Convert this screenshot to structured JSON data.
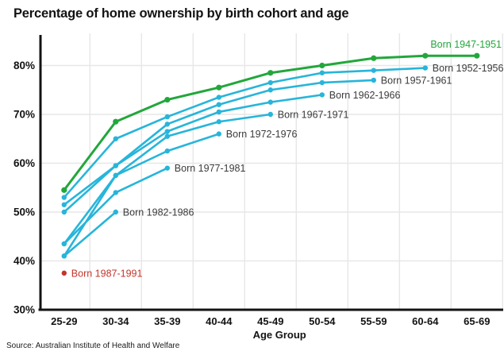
{
  "title": "Percentage of home ownership by birth cohort and age",
  "source": "Source: Australian Institute of Health and Welfare",
  "colors": {
    "green": "#22a73b",
    "cyan": "#27b5da",
    "red": "#c5342c",
    "label_gray": "#3b3b3b",
    "grid": "#e7e7e7",
    "axis": "#131313"
  },
  "chart_data": {
    "type": "line",
    "title": "Percentage of home ownership by birth cohort and age",
    "xlabel": "Age Group",
    "ylabel": "",
    "grid": true,
    "ylim": [
      30,
      86.5
    ],
    "legend_position": "end-of-line-labels",
    "x_categories": [
      "25-29",
      "30-34",
      "35-39",
      "40-44",
      "45-49",
      "50-54",
      "55-59",
      "60-64",
      "65-69"
    ],
    "y_ticks": [
      {
        "value": 80,
        "label": "80%"
      },
      {
        "value": 70,
        "label": "70%"
      },
      {
        "value": 60,
        "label": "60%"
      },
      {
        "value": 50,
        "label": "50%"
      },
      {
        "value": 40,
        "label": "40%"
      },
      {
        "value": 30,
        "label": "30%"
      }
    ],
    "series": [
      {
        "name": "Born 1947-1951",
        "color_key": "green",
        "label_color_key": "green",
        "label_pos": "above-end",
        "values": [
          54.5,
          68.5,
          73,
          75.5,
          78.5,
          80,
          81.5,
          82,
          82
        ]
      },
      {
        "name": "Born 1952-1956",
        "color_key": "cyan",
        "label_color_key": "label_gray",
        "label_pos": "right-of-end",
        "values": [
          53,
          65,
          69.5,
          73.5,
          76.5,
          78.5,
          79,
          79.5
        ]
      },
      {
        "name": "Born 1957-1961",
        "color_key": "cyan",
        "label_color_key": "label_gray",
        "label_pos": "right-of-end",
        "values": [
          51.5,
          59.5,
          68,
          72,
          75,
          76.5,
          77
        ]
      },
      {
        "name": "Born 1962-1966",
        "color_key": "cyan",
        "label_color_key": "label_gray",
        "label_pos": "right-of-end",
        "values": [
          50,
          59.5,
          66.5,
          70.5,
          72.5,
          74
        ]
      },
      {
        "name": "Born 1967-1971",
        "color_key": "cyan",
        "label_color_key": "label_gray",
        "label_pos": "right-of-end",
        "values": [
          43.5,
          57.5,
          65.5,
          68.5,
          70
        ]
      },
      {
        "name": "Born 1972-1976",
        "color_key": "cyan",
        "label_color_key": "label_gray",
        "label_pos": "right-of-end",
        "values": [
          41,
          57.5,
          62.5,
          66
        ]
      },
      {
        "name": "Born 1977-1981",
        "color_key": "cyan",
        "label_color_key": "label_gray",
        "label_pos": "right-of-end",
        "values": [
          43.5,
          54,
          59
        ]
      },
      {
        "name": "Born 1982-1986",
        "color_key": "cyan",
        "label_color_key": "label_gray",
        "label_pos": "right-of-end",
        "values": [
          41,
          50
        ]
      },
      {
        "name": "Born 1987-1991",
        "color_key": "red",
        "label_color_key": "red",
        "label_pos": "right-of-end",
        "values": [
          37.5
        ]
      }
    ]
  }
}
